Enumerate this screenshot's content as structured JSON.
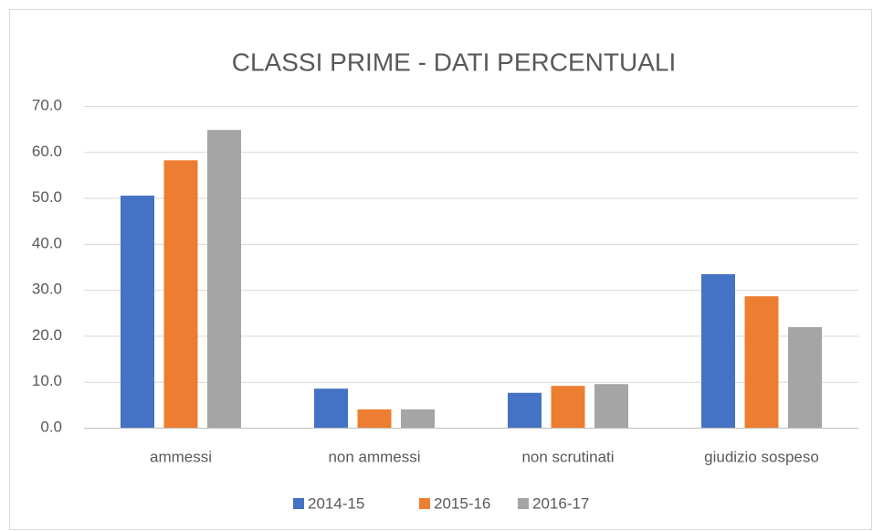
{
  "chart_data": {
    "type": "bar",
    "title": "CLASSI PRIME - DATI PERCENTUALI",
    "categories": [
      "ammessi",
      "non ammessi",
      "non scrutinati",
      "giudizio sospeso"
    ],
    "series": [
      {
        "name": "2014-15",
        "color": "#4472c4",
        "values": [
          50.5,
          8.5,
          7.6,
          33.4
        ]
      },
      {
        "name": "2015-16",
        "color": "#ed7d31",
        "values": [
          58.2,
          4.0,
          9.1,
          28.6
        ]
      },
      {
        "name": "2016-17",
        "color": "#a5a5a5",
        "values": [
          64.8,
          4.0,
          9.5,
          21.9
        ]
      }
    ],
    "ylim": [
      0,
      70
    ],
    "yticks": [
      {
        "value": 0,
        "label": "0.0"
      },
      {
        "value": 10,
        "label": "10.0"
      },
      {
        "value": 20,
        "label": "20.0"
      },
      {
        "value": 30,
        "label": "30.0"
      },
      {
        "value": 40,
        "label": "40.0"
      },
      {
        "value": 50,
        "label": "50.0"
      },
      {
        "value": 60,
        "label": "60.0"
      },
      {
        "value": 70,
        "label": "70.0"
      }
    ],
    "grid": true,
    "legend": "bottom"
  }
}
